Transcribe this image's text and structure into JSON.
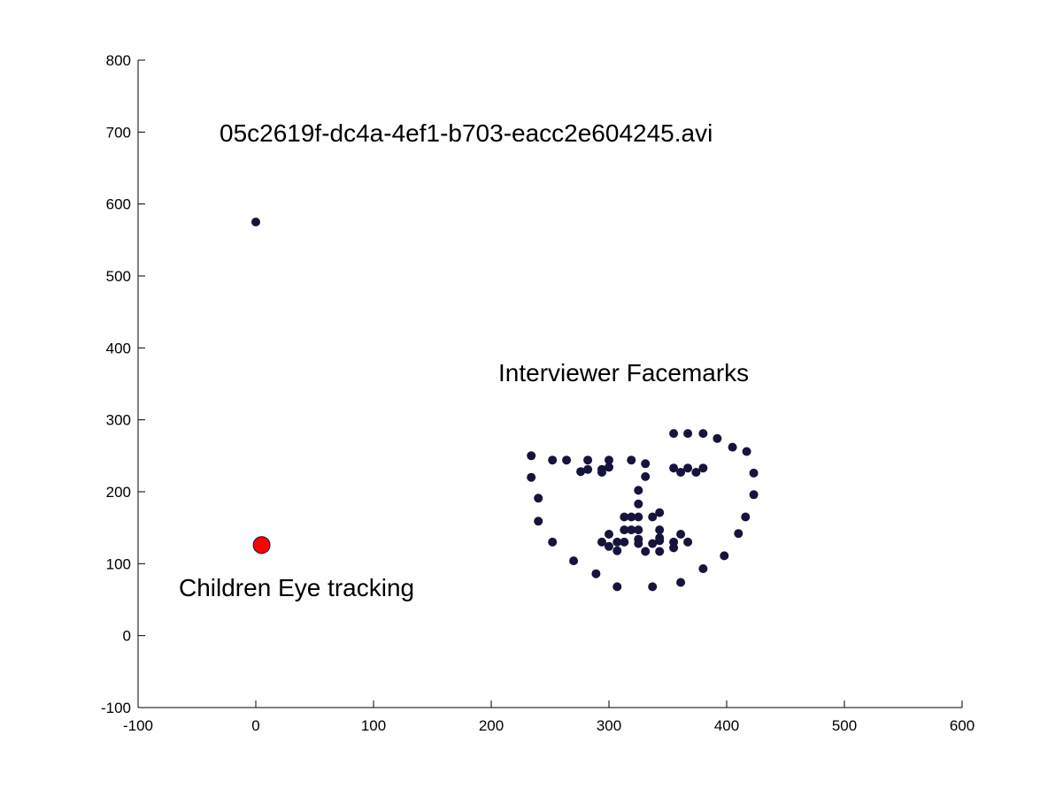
{
  "chart_data": {
    "type": "scatter",
    "title": "05c2619f-dc4a-4ef1-b703-eacc2e604245.avi",
    "xlabel": "",
    "ylabel": "",
    "xlim": [
      -100,
      600
    ],
    "ylim": [
      -100,
      800
    ],
    "xticks": [
      -100,
      0,
      100,
      200,
      300,
      400,
      500,
      600
    ],
    "yticks": [
      -100,
      0,
      100,
      200,
      300,
      400,
      500,
      600,
      700,
      800
    ],
    "xtick_labels": [
      "-100",
      "0",
      "100",
      "200",
      "300",
      "400",
      "500",
      "600"
    ],
    "ytick_labels": [
      "-100",
      "0",
      "100",
      "200",
      "300",
      "400",
      "500",
      "600",
      "700",
      "800"
    ],
    "grid": false,
    "annotations": [
      {
        "text": "Interviewer Facemarks"
      },
      {
        "text": "Children Eye tracking"
      }
    ],
    "series": [
      {
        "color": "#14143c",
        "marker": "dot",
        "points": [
          [
            0,
            575
          ],
          [
            234,
            250
          ],
          [
            234,
            220
          ],
          [
            240,
            191
          ],
          [
            240,
            159
          ],
          [
            252,
            130
          ],
          [
            270,
            104
          ],
          [
            289,
            86
          ],
          [
            307,
            68
          ],
          [
            337,
            68
          ],
          [
            361,
            74
          ],
          [
            380,
            93
          ],
          [
            398,
            111
          ],
          [
            410,
            142
          ],
          [
            416,
            165
          ],
          [
            423,
            196
          ],
          [
            423,
            226
          ],
          [
            417,
            256
          ],
          [
            405,
            262
          ],
          [
            392,
            274
          ],
          [
            252,
            244
          ],
          [
            264,
            244
          ],
          [
            282,
            244
          ],
          [
            300,
            244
          ],
          [
            319,
            244
          ],
          [
            276,
            228
          ],
          [
            282,
            231
          ],
          [
            294,
            227
          ],
          [
            300,
            234
          ],
          [
            294,
            231
          ],
          [
            355,
            281
          ],
          [
            367,
            281
          ],
          [
            380,
            281
          ],
          [
            331,
            239
          ],
          [
            331,
            221
          ],
          [
            325,
            202
          ],
          [
            325,
            183
          ],
          [
            325,
            165
          ],
          [
            313,
            165
          ],
          [
            319,
            165
          ],
          [
            355,
            233
          ],
          [
            361,
            227
          ],
          [
            367,
            233
          ],
          [
            374,
            227
          ],
          [
            380,
            233
          ],
          [
            337,
            165
          ],
          [
            343,
            171
          ],
          [
            343,
            147
          ],
          [
            343,
            132
          ],
          [
            343,
            117
          ],
          [
            337,
            128
          ],
          [
            294,
            130
          ],
          [
            300,
            141
          ],
          [
            300,
            124
          ],
          [
            307,
            118
          ],
          [
            307,
            130
          ],
          [
            313,
            147
          ],
          [
            313,
            130
          ],
          [
            319,
            147
          ],
          [
            325,
            147
          ],
          [
            325,
            134
          ],
          [
            325,
            128
          ],
          [
            331,
            117
          ],
          [
            343,
            136
          ],
          [
            355,
            122
          ],
          [
            355,
            130
          ],
          [
            361,
            141
          ],
          [
            367,
            130
          ]
        ]
      },
      {
        "color": "#ff0000",
        "marker": "large-dot",
        "points": [
          [
            5,
            126
          ]
        ]
      }
    ]
  }
}
